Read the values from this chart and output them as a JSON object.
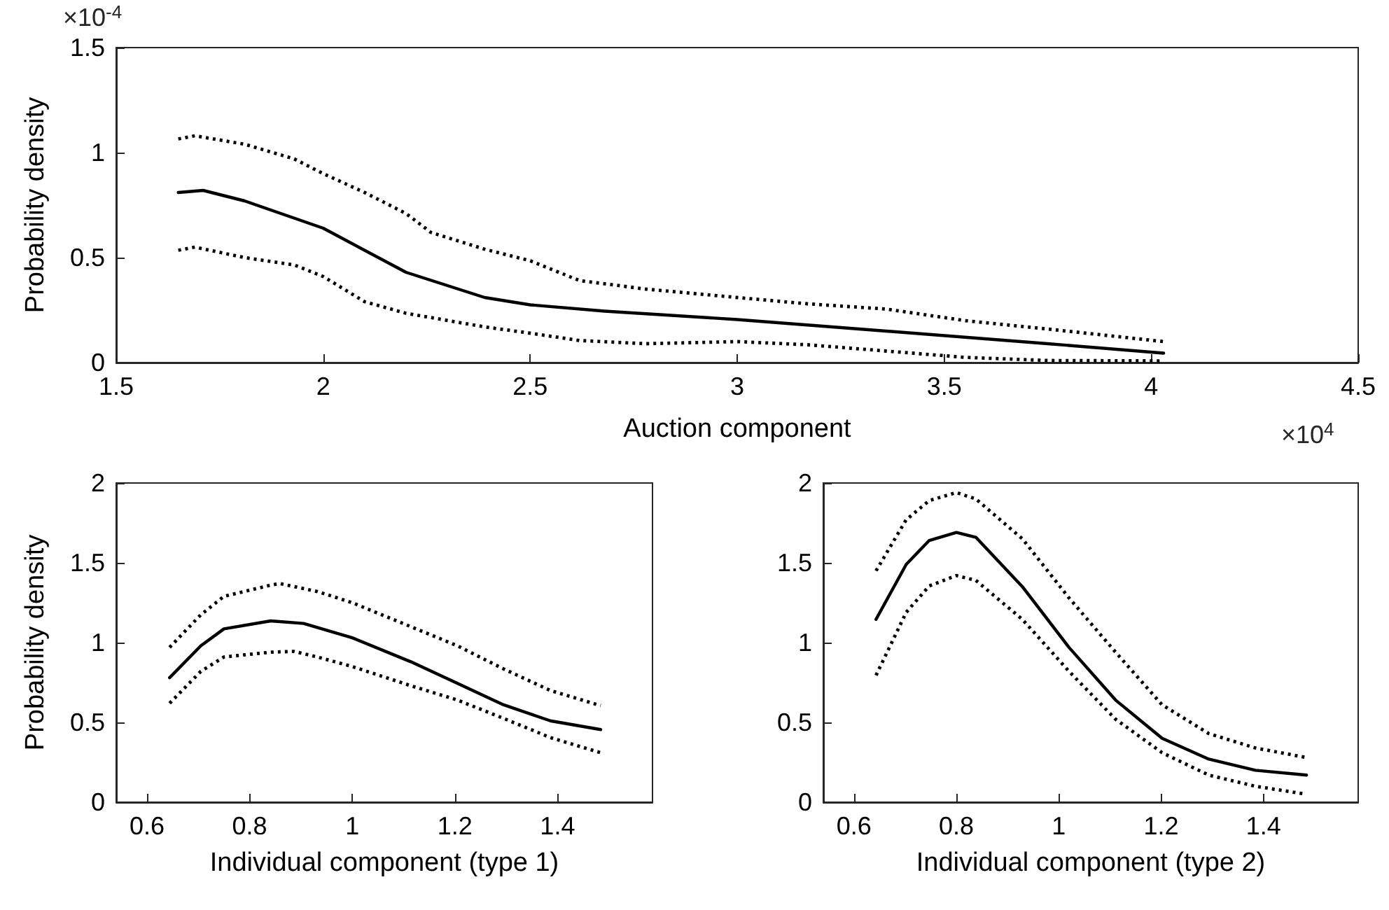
{
  "chart_data": [
    {
      "type": "line",
      "xlabel": "Auction component",
      "ylabel": "Probability density",
      "xlim": [
        1.5,
        4.5
      ],
      "xticks": [
        1.5,
        2,
        2.5,
        3,
        3.5,
        4,
        4.5
      ],
      "ylim": [
        0,
        1.5
      ],
      "yticks": [
        0,
        0.5,
        1,
        1.5
      ],
      "grid": false,
      "marker": "none",
      "annotations": [
        "×10$^{-4}$",
        "×10$^{4}$"
      ],
      "series": [
        {
          "color": "#000000",
          "line_style": "dotted",
          "x": [
            1.65,
            1.69,
            1.81,
            1.93,
            2.0,
            2.1,
            2.2,
            2.26,
            2.39,
            2.5,
            2.62,
            2.78,
            3.0,
            3.17,
            3.36,
            3.55,
            3.75,
            4.03
          ],
          "values": [
            1.065,
            1.08,
            1.04,
            0.97,
            0.9,
            0.81,
            0.71,
            0.62,
            0.54,
            0.485,
            0.39,
            0.35,
            0.31,
            0.28,
            0.255,
            0.2,
            0.16,
            0.1
          ]
        },
        {
          "color": "#000000",
          "line_style": "solid",
          "x": [
            1.65,
            1.71,
            1.81,
            2.0,
            2.2,
            2.39,
            2.5,
            2.68,
            3.0,
            3.36,
            3.75,
            4.03
          ],
          "values": [
            0.81,
            0.82,
            0.77,
            0.64,
            0.43,
            0.31,
            0.275,
            0.245,
            0.205,
            0.15,
            0.09,
            0.045
          ]
        },
        {
          "color": "#000000",
          "line_style": "dotted",
          "x": [
            1.65,
            1.69,
            1.81,
            1.93,
            2.0,
            2.1,
            2.2,
            2.39,
            2.5,
            2.62,
            2.78,
            3.0,
            3.17,
            3.36,
            3.55,
            3.75,
            4.03
          ],
          "values": [
            0.535,
            0.55,
            0.5,
            0.465,
            0.41,
            0.29,
            0.235,
            0.17,
            0.14,
            0.105,
            0.09,
            0.1,
            0.085,
            0.055,
            0.025,
            0.01,
            0.008
          ]
        }
      ]
    },
    {
      "type": "line",
      "xlabel": "Individual component (type 1)",
      "ylabel": "Probability density",
      "xlim": [
        0.54,
        1.585
      ],
      "xticks": [
        0.6,
        0.8,
        1,
        1.2,
        1.4
      ],
      "ylim": [
        0,
        2
      ],
      "yticks": [
        0,
        0.5,
        1,
        1.5,
        2
      ],
      "grid": false,
      "marker": "none",
      "series": [
        {
          "color": "#000000",
          "line_style": "dotted",
          "x": [
            0.644,
            0.705,
            0.75,
            0.841,
            0.859,
            0.932,
            1.0,
            1.114,
            1.205,
            1.295,
            1.386,
            1.484
          ],
          "values": [
            0.97,
            1.175,
            1.29,
            1.36,
            1.37,
            1.32,
            1.25,
            1.1,
            0.98,
            0.835,
            0.7,
            0.605
          ]
        },
        {
          "color": "#000000",
          "line_style": "solid",
          "x": [
            0.644,
            0.705,
            0.75,
            0.841,
            0.905,
            1.0,
            1.114,
            1.205,
            1.295,
            1.386,
            1.484
          ],
          "values": [
            0.78,
            0.98,
            1.086,
            1.136,
            1.12,
            1.03,
            0.88,
            0.745,
            0.61,
            0.51,
            0.455
          ]
        },
        {
          "color": "#000000",
          "line_style": "dotted",
          "x": [
            0.644,
            0.705,
            0.75,
            0.841,
            0.886,
            0.932,
            1.0,
            1.114,
            1.205,
            1.295,
            1.386,
            1.484
          ],
          "values": [
            0.62,
            0.82,
            0.91,
            0.94,
            0.945,
            0.91,
            0.85,
            0.73,
            0.64,
            0.525,
            0.405,
            0.31
          ]
        }
      ]
    },
    {
      "type": "line",
      "xlabel": "Individual component (type 2)",
      "xlim": [
        0.54,
        1.585
      ],
      "xticks": [
        0.6,
        0.8,
        1,
        1.2,
        1.4
      ],
      "ylim": [
        0,
        2
      ],
      "yticks": [
        0,
        0.5,
        1,
        1.5,
        2
      ],
      "grid": false,
      "marker": "none",
      "series": [
        {
          "color": "#000000",
          "line_style": "dotted",
          "x": [
            0.643,
            0.702,
            0.747,
            0.8,
            0.838,
            0.929,
            1.02,
            1.111,
            1.202,
            1.293,
            1.384,
            1.484
          ],
          "values": [
            1.45,
            1.77,
            1.89,
            1.94,
            1.9,
            1.65,
            1.28,
            0.94,
            0.61,
            0.43,
            0.34,
            0.28
          ]
        },
        {
          "color": "#000000",
          "line_style": "solid",
          "x": [
            0.643,
            0.702,
            0.747,
            0.8,
            0.838,
            0.929,
            1.02,
            1.111,
            1.202,
            1.293,
            1.384,
            1.484
          ],
          "values": [
            1.146,
            1.49,
            1.64,
            1.69,
            1.66,
            1.35,
            0.97,
            0.64,
            0.4,
            0.27,
            0.2,
            0.17
          ]
        },
        {
          "color": "#000000",
          "line_style": "dotted",
          "x": [
            0.643,
            0.702,
            0.747,
            0.8,
            0.838,
            0.929,
            1.02,
            1.111,
            1.202,
            1.293,
            1.384,
            1.484
          ],
          "values": [
            0.795,
            1.19,
            1.355,
            1.42,
            1.39,
            1.145,
            0.82,
            0.52,
            0.31,
            0.17,
            0.1,
            0.05
          ]
        }
      ]
    }
  ]
}
